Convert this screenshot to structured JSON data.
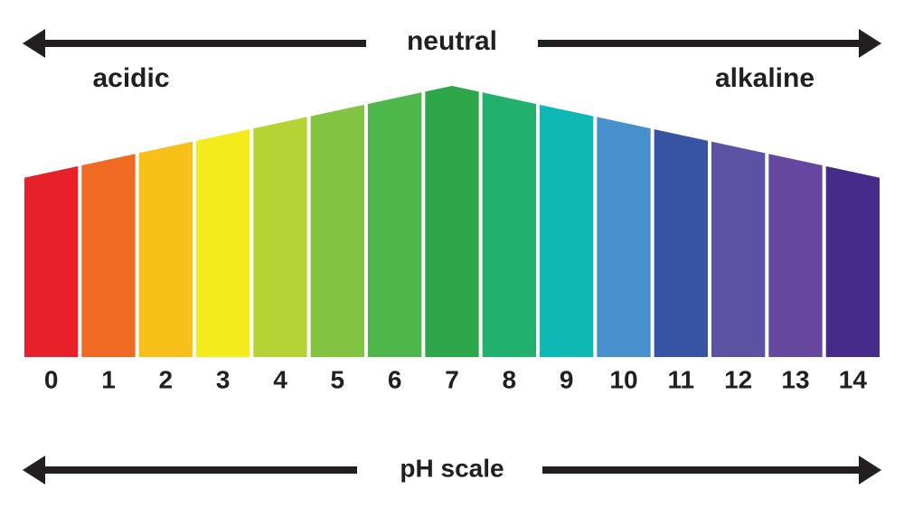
{
  "header": {
    "neutral": "neutral",
    "acidic": "acidic",
    "alkaline": "alkaline"
  },
  "scale": {
    "levels": [
      {
        "label": "0",
        "color": "#e8202a"
      },
      {
        "label": "1",
        "color": "#f06a24"
      },
      {
        "label": "2",
        "color": "#f9c01a"
      },
      {
        "label": "3",
        "color": "#f4eb1d"
      },
      {
        "label": "4",
        "color": "#b5d334"
      },
      {
        "label": "5",
        "color": "#82c341"
      },
      {
        "label": "6",
        "color": "#4db749"
      },
      {
        "label": "7",
        "color": "#2ea64a"
      },
      {
        "label": "8",
        "color": "#22b06d"
      },
      {
        "label": "9",
        "color": "#0db8b5"
      },
      {
        "label": "10",
        "color": "#4691cd"
      },
      {
        "label": "11",
        "color": "#3754a4"
      },
      {
        "label": "12",
        "color": "#5b52a3"
      },
      {
        "label": "13",
        "color": "#6647a0"
      },
      {
        "label": "14",
        "color": "#452c8a"
      }
    ]
  },
  "footer": {
    "title": "pH scale"
  }
}
